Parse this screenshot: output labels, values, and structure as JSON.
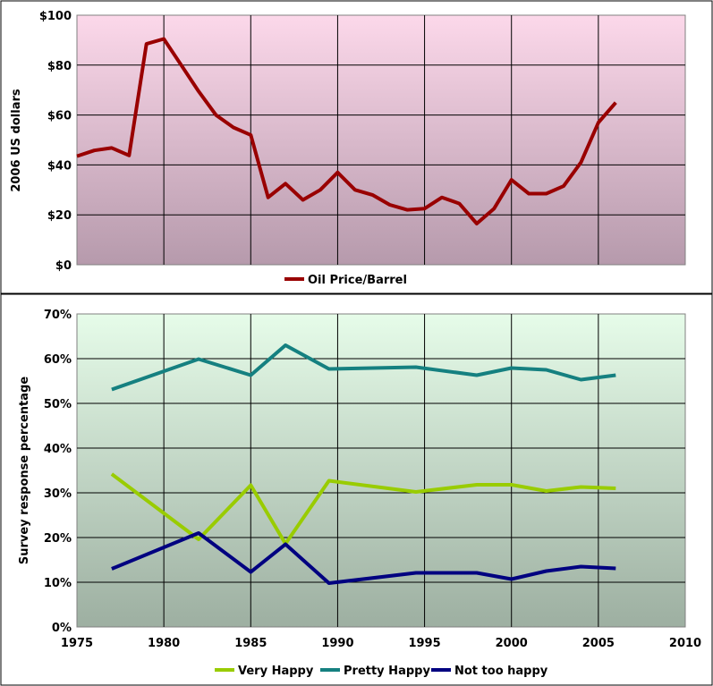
{
  "chart_data": [
    {
      "type": "line",
      "title": "",
      "xlabel": "",
      "ylabel": "2006 US dollars",
      "xlim": [
        1975,
        2010
      ],
      "ylim": [
        0,
        100
      ],
      "xgrid": [
        1980,
        1985,
        1990,
        1995,
        2000,
        2005
      ],
      "yticks": [
        0,
        20,
        40,
        60,
        80,
        100
      ],
      "ytick_labels": [
        "$0",
        "$20",
        "$40",
        "$60",
        "$80",
        "$100"
      ],
      "show_xtick_labels": false,
      "grid": true,
      "legend_position": "bottom",
      "background": {
        "top": "#fcd8ea",
        "bottom": "#b69aac"
      },
      "series": [
        {
          "name": "Oil Price/Barrel",
          "color": "#990000",
          "x": [
            1975,
            1976,
            1977,
            1978,
            1979,
            1980,
            1981,
            1982,
            1983,
            1984,
            1985,
            1986,
            1987,
            1988,
            1989,
            1990,
            1991,
            1992,
            1993,
            1994,
            1995,
            1996,
            1997,
            1998,
            1999,
            2000,
            2001,
            2002,
            2003,
            2004,
            2005,
            2006
          ],
          "y": [
            43.5,
            45.8,
            46.8,
            43.8,
            88.5,
            90.5,
            80,
            69.5,
            60,
            55,
            52,
            27,
            32.5,
            26,
            30,
            37,
            30,
            28,
            24,
            22,
            22.5,
            27,
            24.5,
            16.5,
            22.5,
            34,
            28.5,
            28.5,
            31.5,
            41,
            57,
            65
          ]
        }
      ]
    },
    {
      "type": "line",
      "title": "",
      "xlabel": "",
      "ylabel": "Survey response percentage",
      "xlim": [
        1975,
        2010
      ],
      "ylim": [
        0,
        70
      ],
      "xticks": [
        1975,
        1980,
        1985,
        1990,
        1995,
        2000,
        2005,
        2010
      ],
      "xtick_labels": [
        "1975",
        "1980",
        "1985",
        "1990",
        "1995",
        "2000",
        "2005",
        "2010"
      ],
      "yticks": [
        0,
        10,
        20,
        30,
        40,
        50,
        60,
        70
      ],
      "ytick_labels": [
        "0%",
        "10%",
        "20%",
        "30%",
        "40%",
        "50%",
        "60%",
        "70%"
      ],
      "grid": true,
      "legend_position": "bottom",
      "background": {
        "top": "#e6fce9",
        "bottom": "#9dafa1"
      },
      "series": [
        {
          "name": "Very Happy",
          "color": "#99cc00",
          "x": [
            1977,
            1982,
            1985,
            1987,
            1989.5,
            1994.5,
            1998,
            2000,
            2002,
            2004,
            2006
          ],
          "y": [
            34.2,
            19.6,
            31.7,
            18.6,
            32.7,
            30.2,
            31.8,
            31.8,
            30.4,
            31.3,
            31
          ],
          "values": [
            34.2,
            19.6,
            31.7,
            18.6,
            32.7,
            30.2,
            31.8,
            31.8,
            30.4,
            31.3,
            31
          ]
        },
        {
          "name": "Pretty Happy",
          "color": "#158080",
          "x": [
            1977,
            1982,
            1985,
            1987,
            1989.5,
            1994.5,
            1998,
            2000,
            2002,
            2004,
            2006
          ],
          "y": [
            53.1,
            59.9,
            56.3,
            63,
            57.7,
            58.1,
            56.3,
            57.9,
            57.5,
            55.3,
            56.3
          ],
          "values": [
            53.1,
            59.9,
            56.3,
            63,
            57.7,
            58.1,
            56.3,
            57.9,
            57.5,
            55.3,
            56.3
          ]
        },
        {
          "name": "Not too happy",
          "color": "#000080",
          "x": [
            1977,
            1982,
            1985,
            1987,
            1989.5,
            1994.5,
            1998,
            2000,
            2002,
            2004,
            2006
          ],
          "y": [
            13,
            21,
            12.3,
            18.5,
            9.8,
            12.1,
            12.1,
            10.7,
            12.5,
            13.5,
            13.1
          ],
          "values": [
            13,
            21,
            12.3,
            18.5,
            9.8,
            12.1,
            12.1,
            10.7,
            12.5,
            13.5,
            13.1
          ]
        }
      ]
    }
  ]
}
